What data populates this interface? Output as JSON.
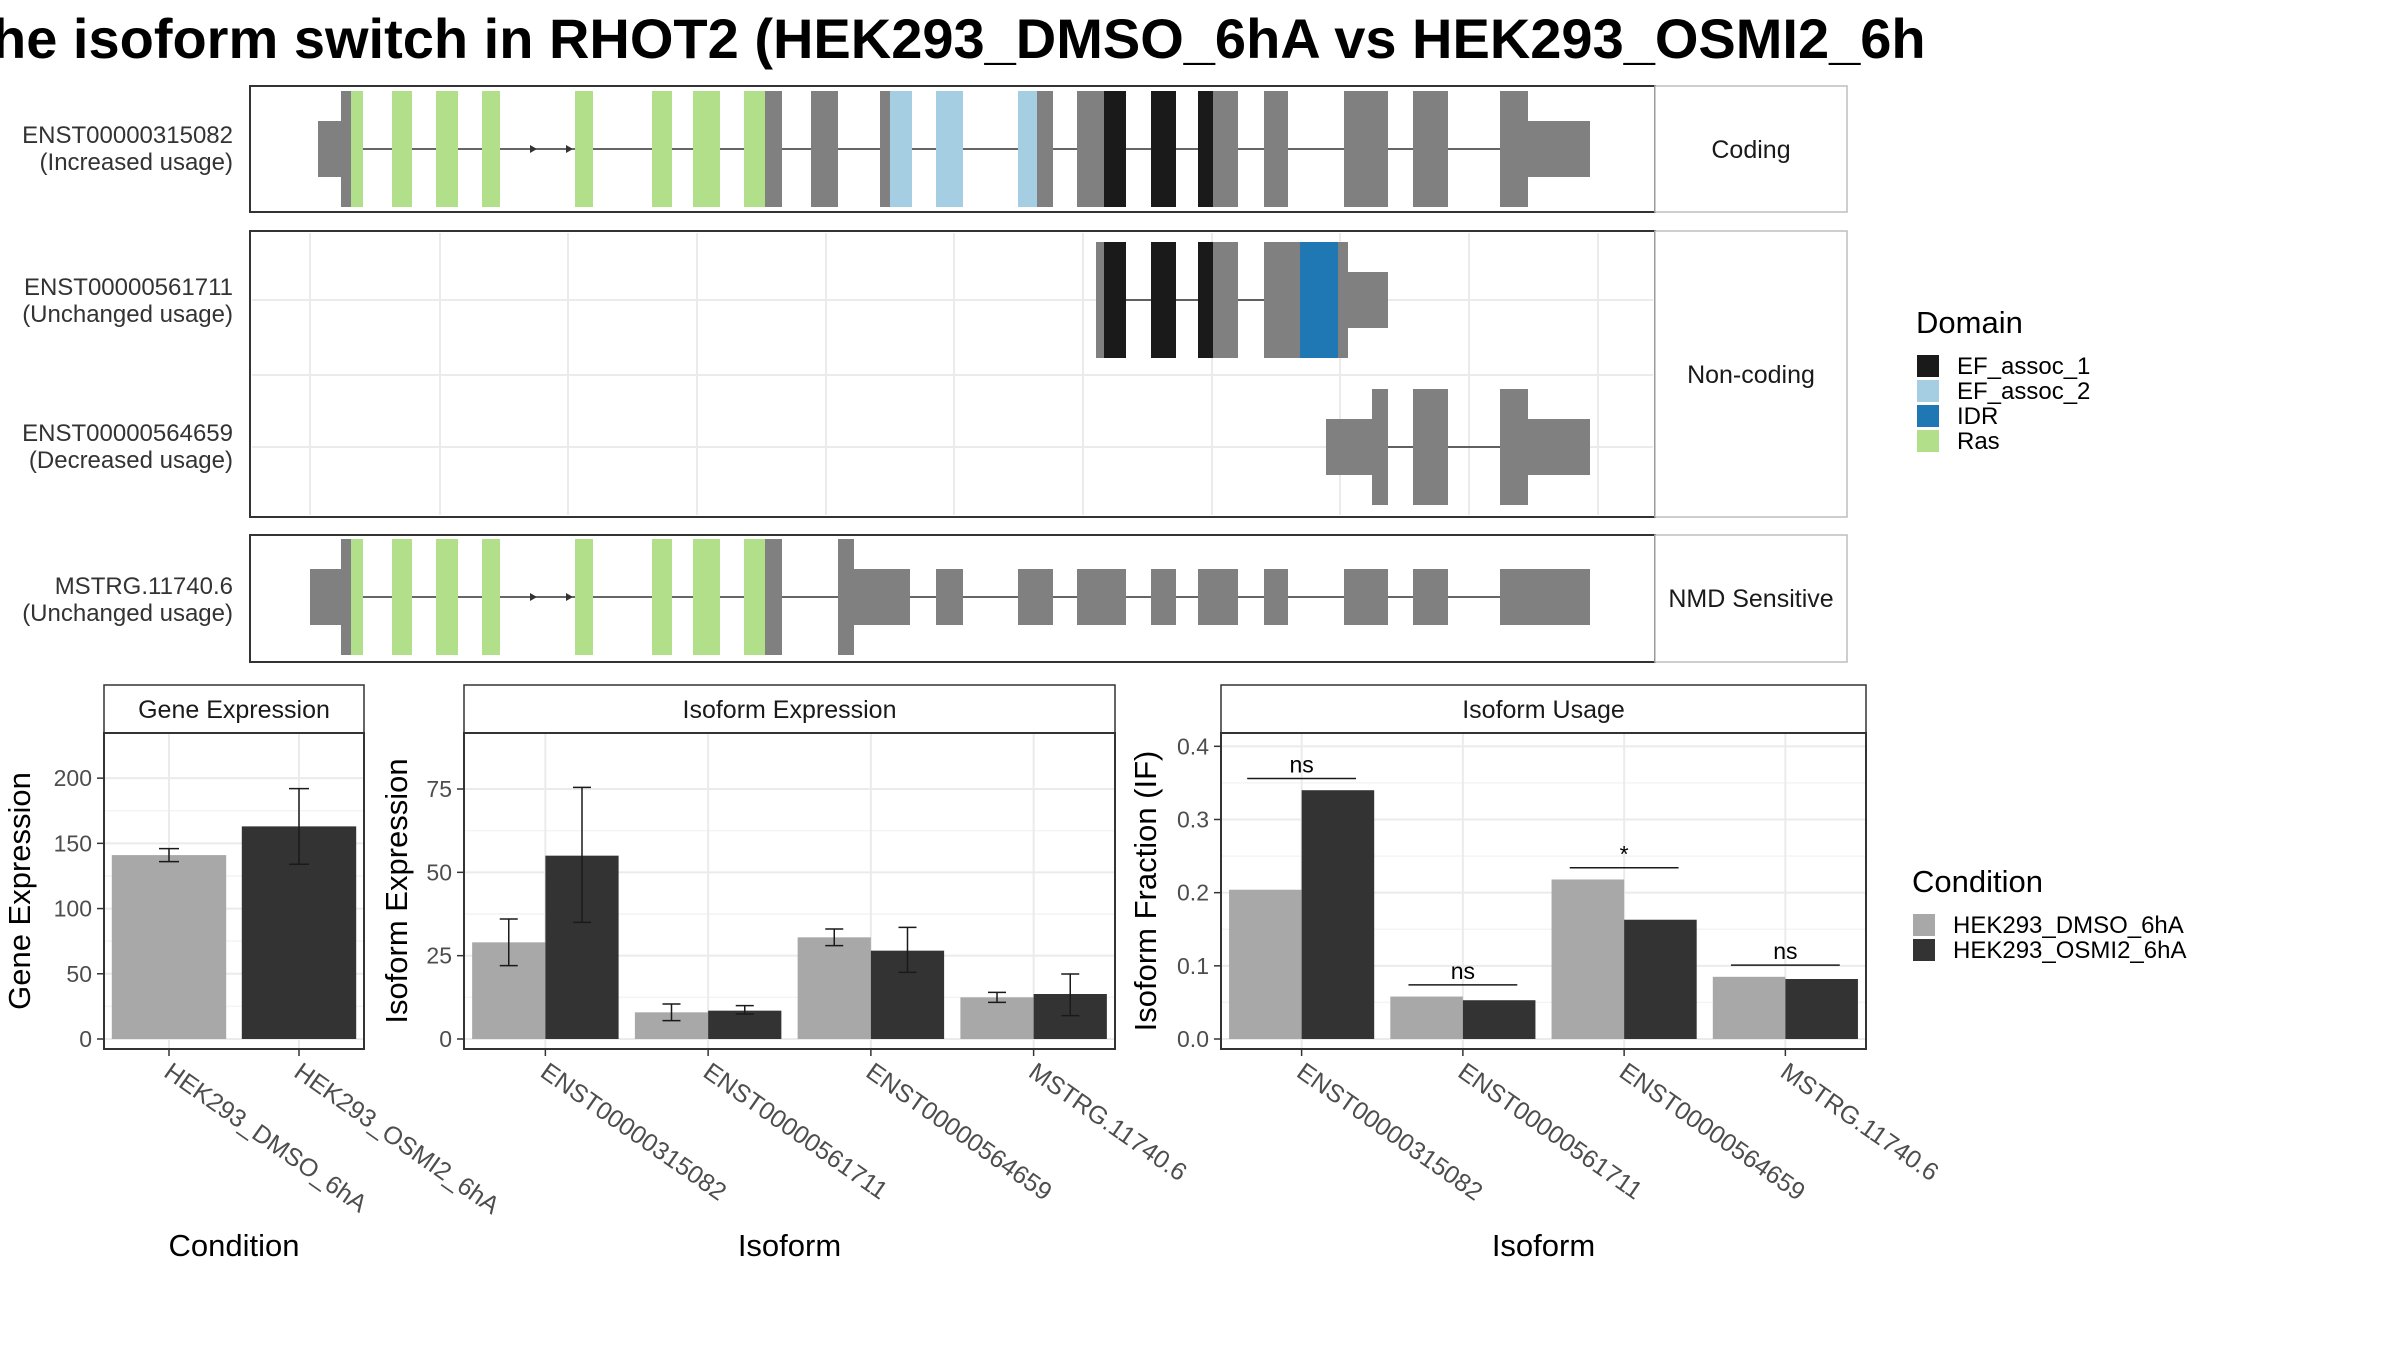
{
  "title": "he isoform switch in RHOT2 (HEK293_DMSO_6hA vs HEK293_OSMI2_6h",
  "colors": {
    "exon": "#808080",
    "EF_assoc_1": "#1a1a1a",
    "EF_assoc_2": "#a6cee3",
    "IDR": "#1f78b4",
    "Ras": "#b2df8a",
    "dmso": "#a8a8a8",
    "osmi": "#333333"
  },
  "structure": {
    "facets": [
      {
        "label": "Coding",
        "transcripts": [
          {
            "id": "ENST00000315082",
            "status": "(Increased usage)"
          }
        ]
      },
      {
        "label": "Non-coding",
        "transcripts": [
          {
            "id": "ENST00000561711",
            "status": "(Unchanged usage)"
          },
          {
            "id": "ENST00000564659",
            "status": "(Decreased usage)"
          }
        ]
      },
      {
        "label": "NMD Sensitive",
        "transcripts": [
          {
            "id": "MSTRG.11740.6",
            "status": "(Unchanged usage)"
          }
        ]
      }
    ]
  },
  "legend_domain": {
    "title": "Domain",
    "items": [
      {
        "label": "EF_assoc_1",
        "color": "#1a1a1a"
      },
      {
        "label": "EF_assoc_2",
        "color": "#a6cee3"
      },
      {
        "label": "IDR",
        "color": "#1f78b4"
      },
      {
        "label": "Ras",
        "color": "#b2df8a"
      }
    ]
  },
  "legend_condition": {
    "title": "Condition",
    "items": [
      {
        "label": "HEK293_DMSO_6hA",
        "color": "#a8a8a8"
      },
      {
        "label": "HEK293_OSMI2_6hA",
        "color": "#333333"
      }
    ]
  },
  "chart_data": [
    {
      "type": "bar",
      "title": "Gene Expression",
      "xlabel": "Condition",
      "ylabel": "Gene Expression",
      "categories": [
        "HEK293_DMSO_6hA",
        "HEK293_OSMI2_6hA"
      ],
      "values": [
        141,
        163
      ],
      "error_low": [
        136,
        134
      ],
      "error_high": [
        146,
        192
      ],
      "ylim": [
        0,
        230
      ],
      "yticks": [
        0,
        50,
        100,
        150,
        200
      ]
    },
    {
      "type": "bar",
      "title": "Isoform Expression",
      "xlabel": "Isoform",
      "ylabel": "Isoform Expression",
      "categories": [
        "ENST00000315082",
        "ENST00000561711",
        "ENST00000564659",
        "MSTRG.11740.6"
      ],
      "series": [
        {
          "name": "HEK293_DMSO_6hA",
          "values": [
            29,
            8,
            30.5,
            12.5
          ],
          "error_low": [
            22,
            5.5,
            28,
            11
          ],
          "error_high": [
            36,
            10.5,
            33,
            14
          ]
        },
        {
          "name": "HEK293_OSMI2_6hA",
          "values": [
            55,
            8.5,
            26.5,
            13.5
          ],
          "error_low": [
            35,
            7.5,
            20,
            7
          ],
          "error_high": [
            75.5,
            10,
            33.5,
            19.5
          ]
        }
      ],
      "ylim": [
        0,
        90
      ],
      "yticks": [
        0,
        25,
        50,
        75
      ]
    },
    {
      "type": "bar",
      "title": "Isoform Usage",
      "xlabel": "Isoform",
      "ylabel": "Isoform Fraction (IF)",
      "categories": [
        "ENST00000315082",
        "ENST00000561711",
        "ENST00000564659",
        "MSTRG.11740.6"
      ],
      "series": [
        {
          "name": "HEK293_DMSO_6hA",
          "values": [
            0.204,
            0.058,
            0.218,
            0.085
          ]
        },
        {
          "name": "HEK293_OSMI2_6hA",
          "values": [
            0.34,
            0.053,
            0.163,
            0.082
          ]
        }
      ],
      "significance": [
        "ns",
        "ns",
        "*",
        "ns"
      ],
      "ylim": [
        0,
        0.41
      ],
      "yticks": [
        0.0,
        0.1,
        0.2,
        0.3,
        0.4
      ],
      "ytick_labels": [
        "0.0",
        "0.1",
        "0.2",
        "0.3",
        "0.4"
      ]
    }
  ]
}
